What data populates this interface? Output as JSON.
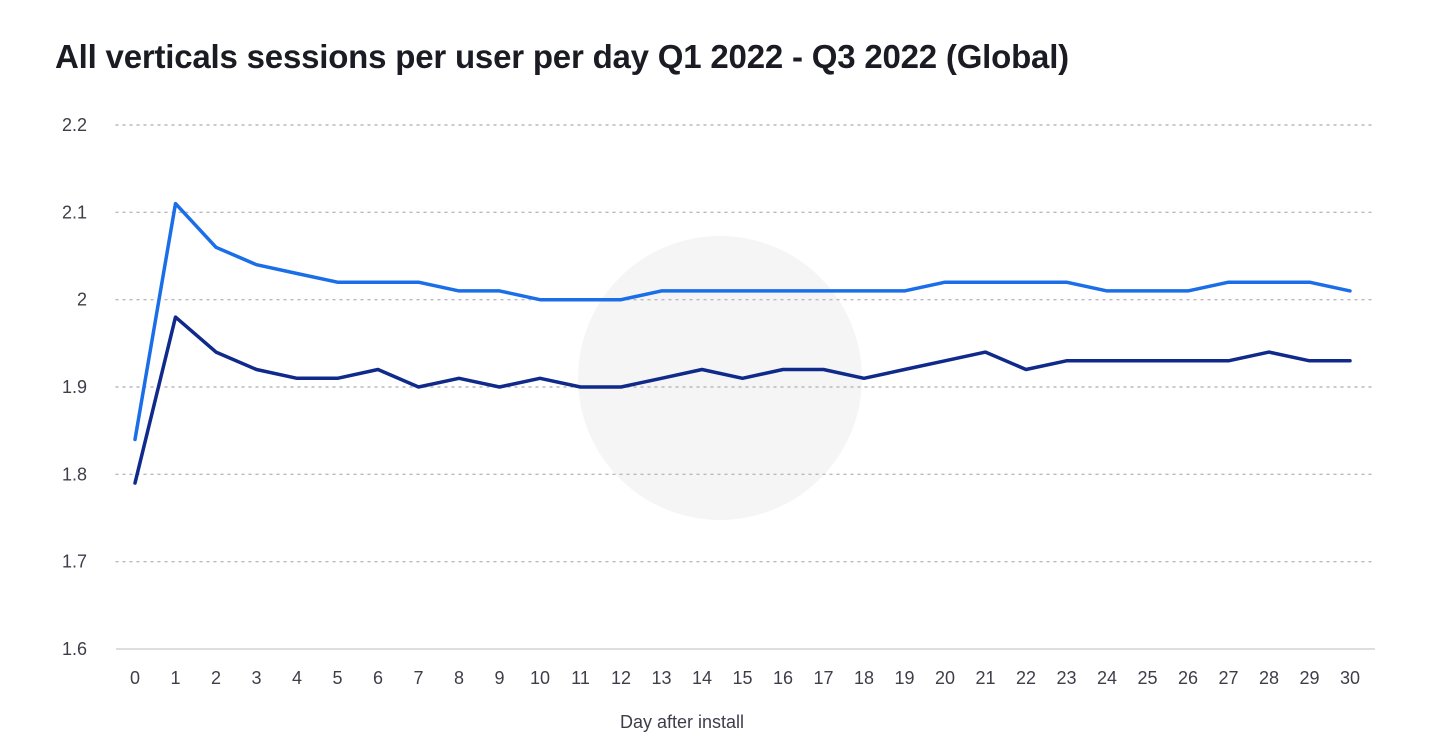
{
  "chart_data": {
    "type": "line",
    "title": "All verticals sessions per user per day Q1 2022 - Q3 2022 (Global)",
    "xlabel": "Day after install",
    "ylabel": "",
    "x": [
      0,
      1,
      2,
      3,
      4,
      5,
      6,
      7,
      8,
      9,
      10,
      11,
      12,
      13,
      14,
      15,
      16,
      17,
      18,
      19,
      20,
      21,
      22,
      23,
      24,
      25,
      26,
      27,
      28,
      29,
      30
    ],
    "ylim": [
      1.6,
      2.2
    ],
    "yticks": [
      "1.6",
      "1.7",
      "1.8",
      "1.9",
      "2",
      "2.1",
      "2.2"
    ],
    "grid": "horizontal-dotted",
    "legend": "none",
    "series": [
      {
        "color": "#1a6fe8",
        "values": [
          1.84,
          2.11,
          2.06,
          2.04,
          2.03,
          2.02,
          2.02,
          2.02,
          2.01,
          2.01,
          2.0,
          2.0,
          2.0,
          2.01,
          2.01,
          2.01,
          2.01,
          2.01,
          2.01,
          2.01,
          2.02,
          2.02,
          2.02,
          2.02,
          2.01,
          2.01,
          2.01,
          2.02,
          2.02,
          2.02,
          2.01
        ]
      },
      {
        "color": "#0f2a8a",
        "values": [
          1.79,
          1.98,
          1.94,
          1.92,
          1.91,
          1.91,
          1.92,
          1.9,
          1.91,
          1.9,
          1.91,
          1.9,
          1.9,
          1.91,
          1.92,
          1.91,
          1.92,
          1.92,
          1.91,
          1.92,
          1.93,
          1.94,
          1.92,
          1.93,
          1.93,
          1.93,
          1.93,
          1.93,
          1.94,
          1.93,
          1.93
        ]
      }
    ]
  }
}
